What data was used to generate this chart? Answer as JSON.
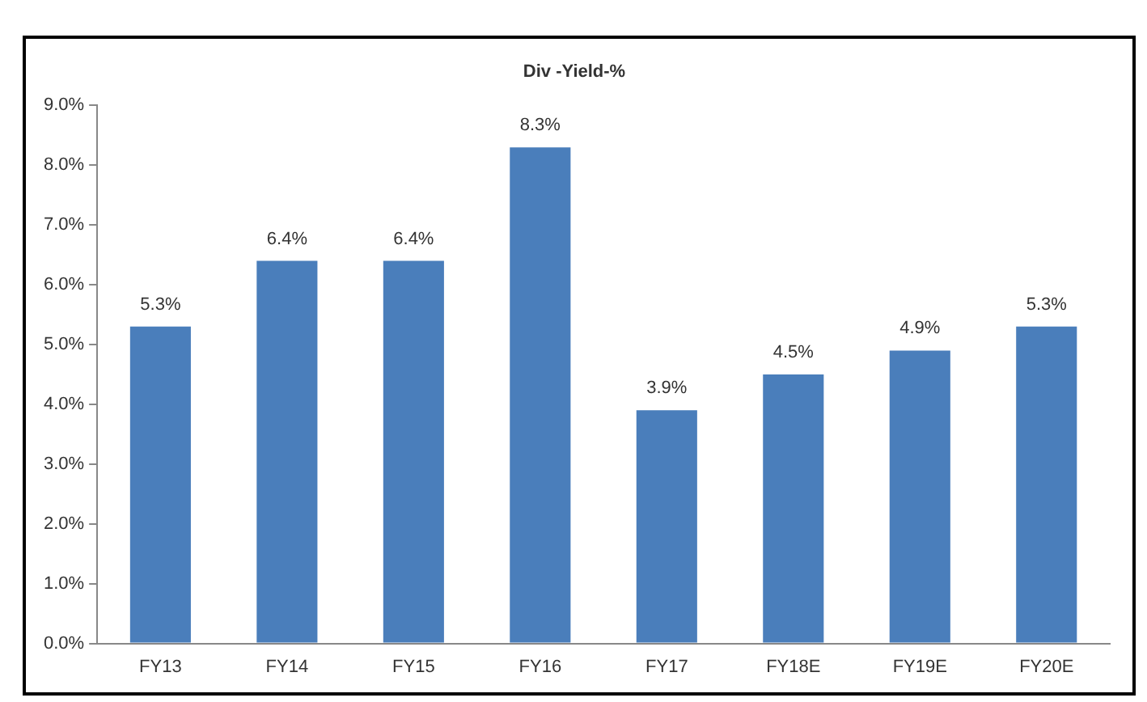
{
  "chart_data": {
    "type": "bar",
    "title": "Div -Yield-%",
    "categories": [
      "FY13",
      "FY14",
      "FY15",
      "FY16",
      "FY17",
      "FY18E",
      "FY19E",
      "FY20E"
    ],
    "values": [
      5.3,
      6.4,
      6.4,
      8.3,
      3.9,
      4.5,
      4.9,
      5.3
    ],
    "value_labels": [
      "5.3%",
      "6.4%",
      "6.4%",
      "8.3%",
      "3.9%",
      "4.5%",
      "4.9%",
      "5.3%"
    ],
    "color": "#4a7ebb",
    "ylim": [
      0,
      9
    ],
    "yticks": [
      {
        "value": 0,
        "label": "0.0%"
      },
      {
        "value": 1,
        "label": "1.0%"
      },
      {
        "value": 2,
        "label": "2.0%"
      },
      {
        "value": 3,
        "label": "3.0%"
      },
      {
        "value": 4,
        "label": "4.0%"
      },
      {
        "value": 5,
        "label": "5.0%"
      },
      {
        "value": 6,
        "label": "6.0%"
      },
      {
        "value": 7,
        "label": "7.0%"
      },
      {
        "value": 8,
        "label": "8.0%"
      },
      {
        "value": 9,
        "label": "9.0%"
      }
    ],
    "grid": false,
    "legend": false
  }
}
